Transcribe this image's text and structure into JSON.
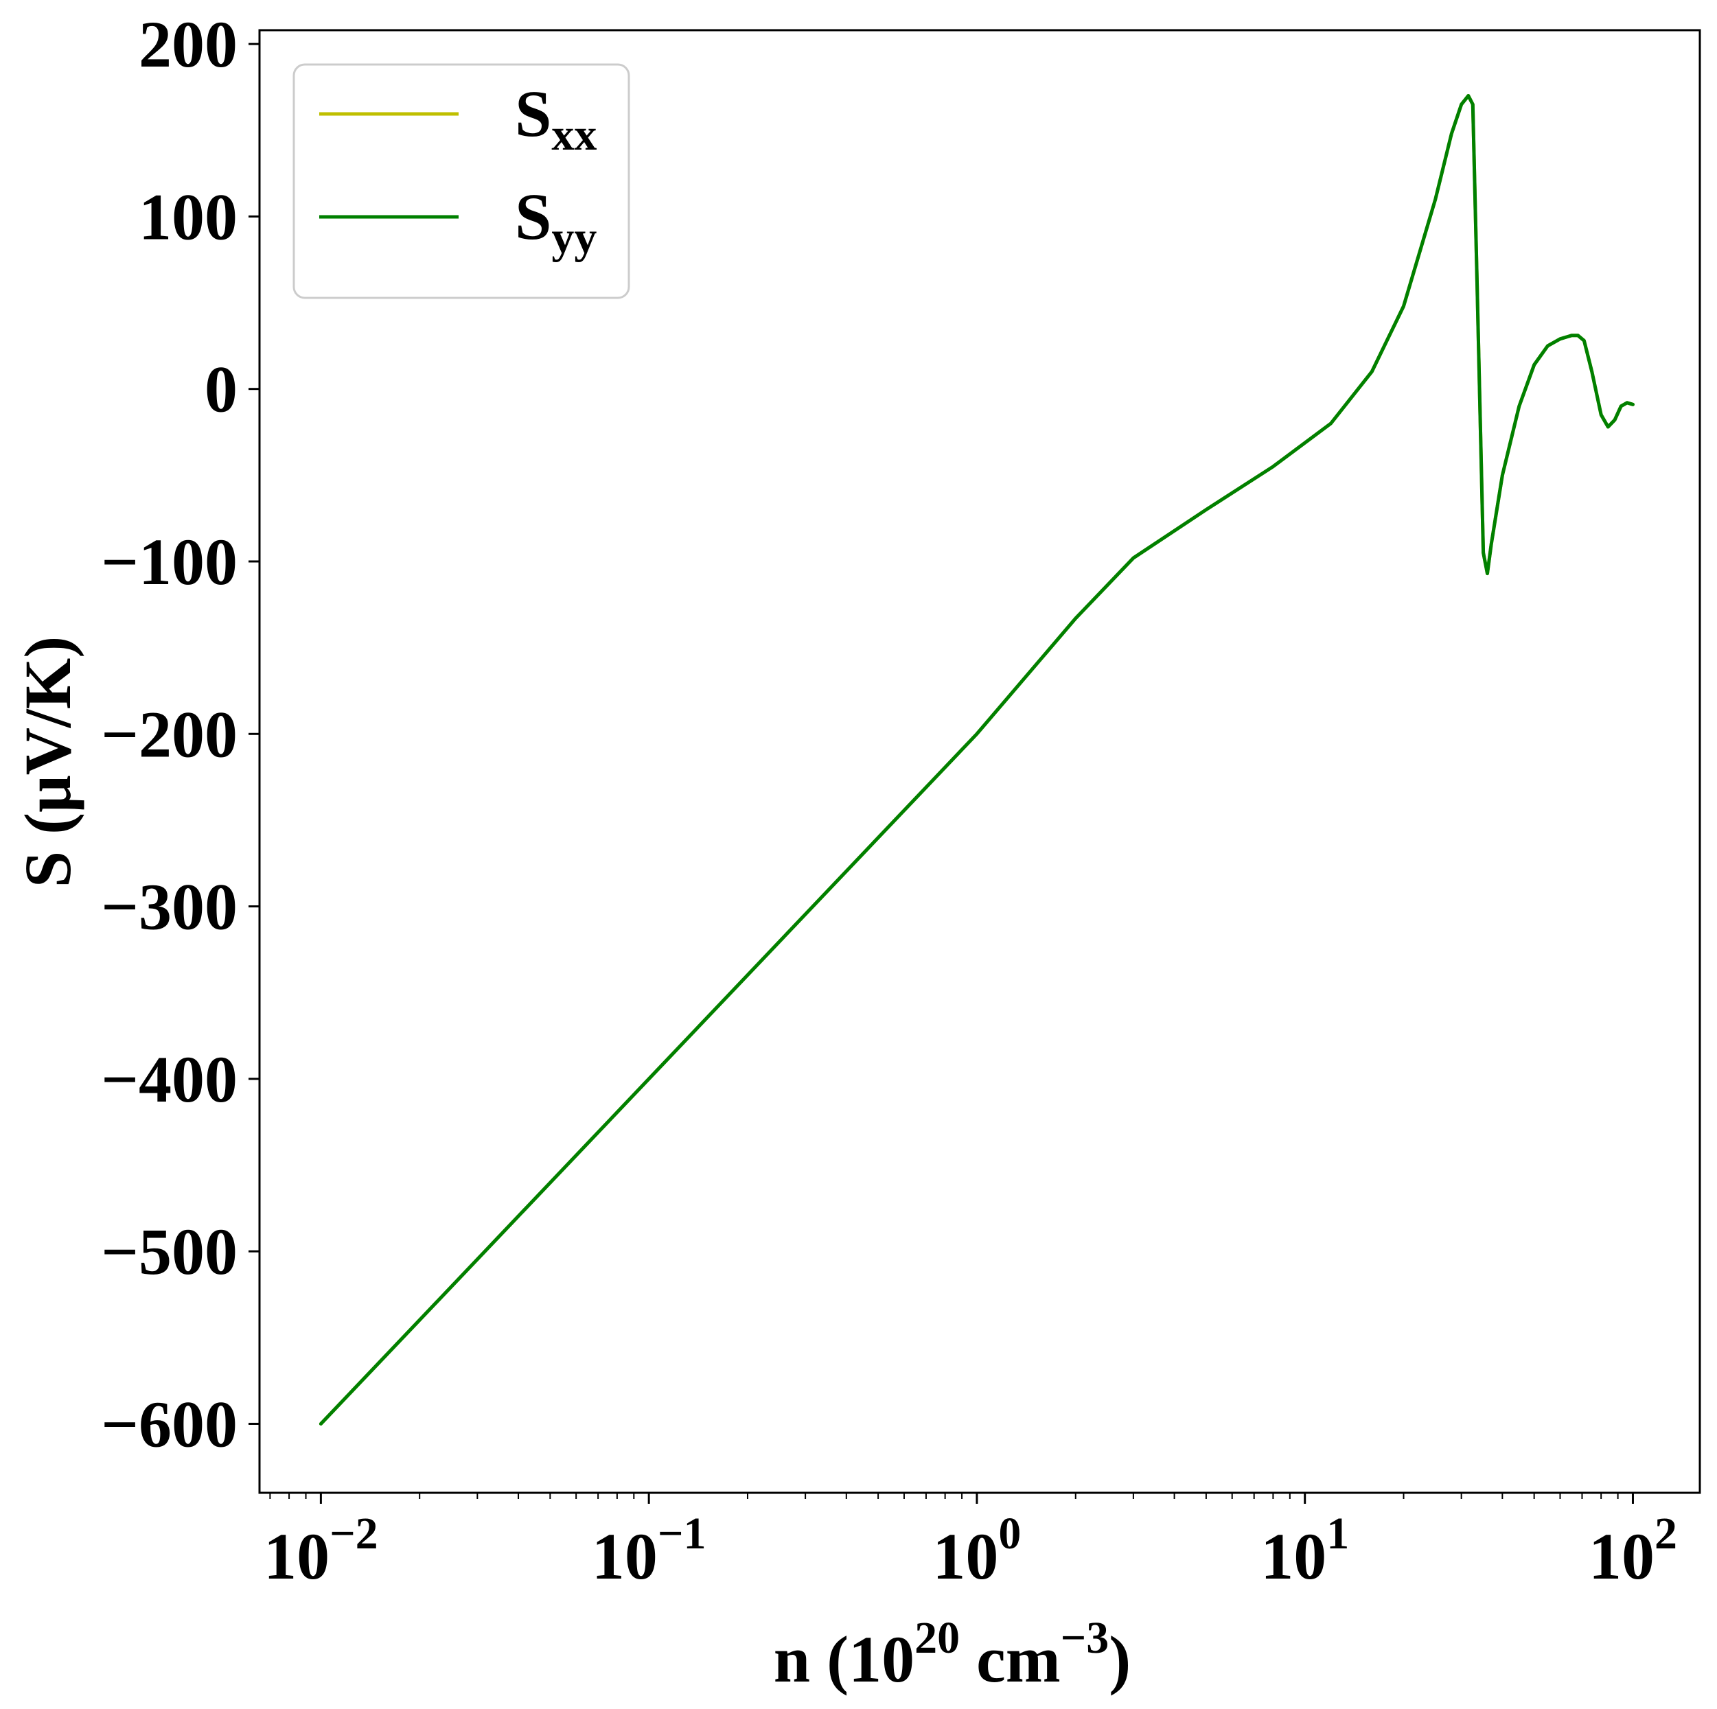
{
  "chart_data": {
    "type": "line",
    "title": "",
    "xlabel": {
      "base": "n (10",
      "sup1": "20",
      "mid": " cm",
      "sup2": "−3",
      "end": ")"
    },
    "ylabel": "S (μV/K)",
    "x_scale": "log",
    "xlim": [
      0.0065,
      160
    ],
    "ylim": [
      -640,
      208
    ],
    "x_ticks": [
      {
        "value": 0.01,
        "base": "10",
        "exp": "−2"
      },
      {
        "value": 0.1,
        "base": "10",
        "exp": "−1"
      },
      {
        "value": 1,
        "base": "10",
        "exp": "0"
      },
      {
        "value": 10,
        "base": "10",
        "exp": "1"
      },
      {
        "value": 100,
        "base": "10",
        "exp": "2"
      }
    ],
    "y_ticks": [
      {
        "value": 200,
        "label": "200"
      },
      {
        "value": 100,
        "label": "100"
      },
      {
        "value": 0,
        "label": "0"
      },
      {
        "value": -100,
        "label": "−100"
      },
      {
        "value": -200,
        "label": "−200"
      },
      {
        "value": -300,
        "label": "−300"
      },
      {
        "value": -400,
        "label": "−400"
      },
      {
        "value": -500,
        "label": "−500"
      },
      {
        "value": -600,
        "label": "−600"
      }
    ],
    "grid": false,
    "legend": {
      "position": "top-left",
      "entries": [
        {
          "main": "S",
          "sub": "xx",
          "color": "#bfbf00"
        },
        {
          "main": "S",
          "sub": "yy",
          "color": "#008000"
        }
      ]
    },
    "series": [
      {
        "name": "Sxx",
        "color": "#bfbf00",
        "x": [
          0.01,
          0.1,
          1,
          2,
          3,
          5,
          8,
          12,
          16,
          20,
          25,
          28,
          30,
          31.5,
          32.5,
          33.5,
          35,
          36,
          37,
          40,
          45,
          50,
          55,
          60,
          65,
          68,
          71,
          75,
          80,
          84,
          88,
          92,
          96,
          100
        ],
        "y": [
          -600,
          -400,
          -200,
          -133,
          -98,
          -70,
          -45,
          -20,
          10,
          48,
          110,
          148,
          165,
          170,
          165,
          60,
          -95,
          -107,
          -90,
          -50,
          -10,
          14,
          25,
          29,
          31,
          31,
          28,
          10,
          -15,
          -22,
          -18,
          -10,
          -8,
          -9
        ]
      },
      {
        "name": "Syy",
        "color": "#008000",
        "x": [
          0.01,
          0.1,
          1,
          2,
          3,
          5,
          8,
          12,
          16,
          20,
          25,
          28,
          30,
          31.5,
          32.5,
          33.5,
          35,
          36,
          37,
          40,
          45,
          50,
          55,
          60,
          65,
          68,
          71,
          75,
          80,
          84,
          88,
          92,
          96,
          100
        ],
        "y": [
          -600,
          -400,
          -200,
          -133,
          -98,
          -70,
          -45,
          -20,
          10,
          48,
          110,
          148,
          165,
          170,
          165,
          60,
          -95,
          -107,
          -90,
          -50,
          -10,
          14,
          25,
          29,
          31,
          31,
          28,
          10,
          -15,
          -22,
          -18,
          -10,
          -8,
          -9
        ]
      }
    ]
  }
}
